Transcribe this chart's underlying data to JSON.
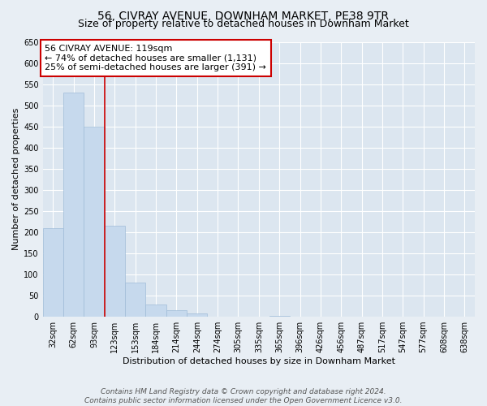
{
  "title": "56, CIVRAY AVENUE, DOWNHAM MARKET, PE38 9TR",
  "subtitle": "Size of property relative to detached houses in Downham Market",
  "xlabel": "Distribution of detached houses by size in Downham Market",
  "ylabel": "Number of detached properties",
  "footer_line1": "Contains HM Land Registry data © Crown copyright and database right 2024.",
  "footer_line2": "Contains public sector information licensed under the Open Government Licence v3.0.",
  "annotation_line1": "56 CIVRAY AVENUE: 119sqm",
  "annotation_line2": "← 74% of detached houses are smaller (1,131)",
  "annotation_line3": "25% of semi-detached houses are larger (391) →",
  "bar_labels": [
    "32sqm",
    "62sqm",
    "93sqm",
    "123sqm",
    "153sqm",
    "184sqm",
    "214sqm",
    "244sqm",
    "274sqm",
    "305sqm",
    "335sqm",
    "365sqm",
    "396sqm",
    "426sqm",
    "456sqm",
    "487sqm",
    "517sqm",
    "547sqm",
    "577sqm",
    "608sqm",
    "638sqm"
  ],
  "bar_values": [
    210,
    530,
    450,
    215,
    80,
    28,
    15,
    8,
    0,
    0,
    0,
    2,
    0,
    0,
    0,
    0,
    1,
    0,
    0,
    1,
    0
  ],
  "bar_color": "#c6d9ed",
  "bar_edge_color": "#a0bcd8",
  "vertical_line_color": "#cc0000",
  "annotation_box_edge_color": "#cc0000",
  "ylim": [
    0,
    650
  ],
  "yticks": [
    0,
    50,
    100,
    150,
    200,
    250,
    300,
    350,
    400,
    450,
    500,
    550,
    600,
    650
  ],
  "background_color": "#e8eef4",
  "plot_bg_color": "#dce6f0",
  "grid_color": "#ffffff",
  "title_fontsize": 10,
  "subtitle_fontsize": 9,
  "axis_label_fontsize": 8,
  "tick_fontsize": 7,
  "annotation_fontsize": 8,
  "footer_fontsize": 6.5
}
